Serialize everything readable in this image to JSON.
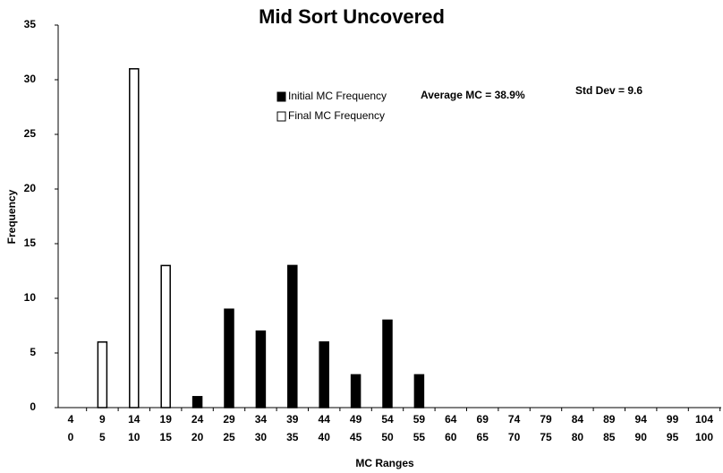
{
  "chart_data": {
    "type": "bar",
    "title": "Mid Sort Uncovered",
    "x_label": "MC Ranges",
    "y_label": "Frequency",
    "annotations": [
      "Average MC = 38.9%",
      "Std Dev = 9.6"
    ],
    "categories": [
      [
        "4",
        "0"
      ],
      [
        "9",
        "5"
      ],
      [
        "14",
        "10"
      ],
      [
        "19",
        "15"
      ],
      [
        "24",
        "20"
      ],
      [
        "29",
        "25"
      ],
      [
        "34",
        "30"
      ],
      [
        "39",
        "35"
      ],
      [
        "44",
        "40"
      ],
      [
        "49",
        "45"
      ],
      [
        "54",
        "50"
      ],
      [
        "59",
        "55"
      ],
      [
        "64",
        "60"
      ],
      [
        "69",
        "65"
      ],
      [
        "74",
        "70"
      ],
      [
        "79",
        "75"
      ],
      [
        "84",
        "80"
      ],
      [
        "89",
        "85"
      ],
      [
        "94",
        "90"
      ],
      [
        "99",
        "95"
      ],
      [
        "104",
        "100"
      ]
    ],
    "series": [
      {
        "name": "Initial MC Frequency",
        "color": "#000000",
        "values": [
          0,
          0,
          0,
          0,
          1,
          9,
          7,
          13,
          6,
          3,
          8,
          3,
          0,
          0,
          0,
          0,
          0,
          0,
          0,
          0,
          0
        ]
      },
      {
        "name": "Final MC Frequency",
        "color": "#ffffff",
        "values": [
          0,
          6,
          31,
          13,
          0,
          0,
          0,
          0,
          0,
          0,
          0,
          0,
          0,
          0,
          0,
          0,
          0,
          0,
          0,
          0,
          0
        ]
      }
    ],
    "ylim": [
      0,
      35
    ],
    "yticks": [
      0,
      5,
      10,
      15,
      20,
      25,
      30,
      35
    ],
    "grid": false
  }
}
